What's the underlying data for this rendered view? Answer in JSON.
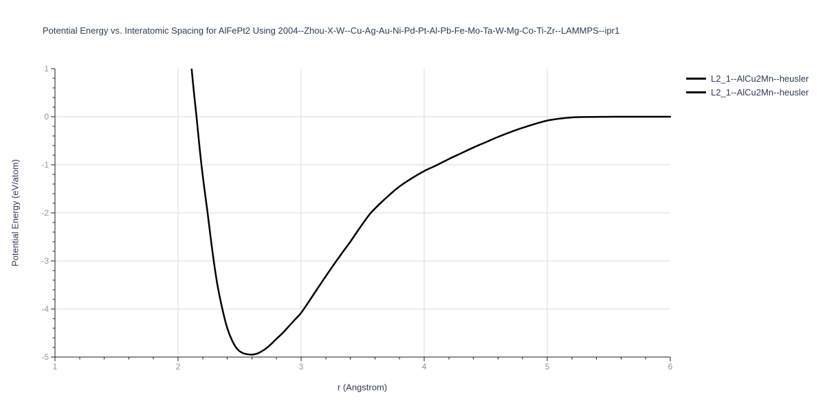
{
  "chart_data": {
    "type": "line",
    "title": "Potential Energy vs. Interatomic Spacing for AlFePt2 Using 2004--Zhou-X-W--Cu-Ag-Au-Ni-Pd-Pt-Al-Pb-Fe-Mo-Ta-W-Mg-Co-Ti-Zr--LAMMPS--ipr1",
    "xlabel": "r (Angstrom)",
    "ylabel": "Potential Energy (eV/atom)",
    "xlim": [
      1,
      6
    ],
    "ylim": [
      -5,
      1
    ],
    "x_ticks": [
      1,
      2,
      3,
      4,
      5,
      6
    ],
    "x_tick_labels": [
      "1",
      "2",
      "3",
      "4",
      "5",
      "6"
    ],
    "y_ticks": [
      1,
      0,
      -1,
      -2,
      -3,
      -4,
      -5
    ],
    "y_tick_labels": [
      "1",
      "0",
      "-1",
      "-2",
      "-3",
      "-4",
      "-5"
    ],
    "minor_tick_step": 0.2,
    "grid": true,
    "legend_position": "top-right-outside",
    "legend": [
      {
        "label": "L2_1--AlCu2Mn--heusler",
        "color": "#000000"
      },
      {
        "label": "L2_1--AlCu2Mn--heusler",
        "color": "#000000"
      }
    ],
    "series": [
      {
        "name": "L2_1--AlCu2Mn--heusler",
        "color": "#000000",
        "line_width": 2.5,
        "x": [
          2.11,
          2.13,
          2.15,
          2.17,
          2.19,
          2.215,
          2.24,
          2.265,
          2.29,
          2.32,
          2.36,
          2.4,
          2.44,
          2.48,
          2.52,
          2.56,
          2.6,
          2.64,
          2.68,
          2.72,
          2.76,
          2.8,
          2.85,
          2.9,
          2.95,
          3.0,
          3.08,
          3.16,
          3.24,
          3.32,
          3.4,
          3.48,
          3.56,
          3.64,
          3.72,
          3.8,
          3.9,
          4.0,
          4.1,
          4.2,
          4.3,
          4.4,
          4.5,
          4.6,
          4.7,
          4.8,
          4.9,
          5.0,
          5.1,
          5.2,
          5.3,
          5.45,
          5.6,
          5.8,
          6.0
        ],
        "y": [
          1.0,
          0.48,
          0.0,
          -0.52,
          -1.0,
          -1.52,
          -2.0,
          -2.52,
          -3.0,
          -3.5,
          -4.0,
          -4.4,
          -4.66,
          -4.83,
          -4.91,
          -4.94,
          -4.95,
          -4.93,
          -4.88,
          -4.81,
          -4.72,
          -4.62,
          -4.5,
          -4.36,
          -4.22,
          -4.08,
          -3.78,
          -3.47,
          -3.17,
          -2.88,
          -2.6,
          -2.3,
          -2.02,
          -1.81,
          -1.62,
          -1.45,
          -1.28,
          -1.13,
          -1.01,
          -0.88,
          -0.76,
          -0.64,
          -0.53,
          -0.42,
          -0.32,
          -0.23,
          -0.15,
          -0.08,
          -0.04,
          -0.015,
          -0.006,
          -0.002,
          0.0,
          0.0,
          0.0
        ]
      }
    ],
    "annotations": {
      "minimum_r": 2.58,
      "minimum_energy": -4.95
    },
    "colors": {
      "curve": "#000000",
      "grid": "#e6e6e6",
      "axis": "#1c1c1c",
      "tick_label": "#8b93a4",
      "text": "#2e3b55",
      "background": "#ffffff"
    }
  }
}
